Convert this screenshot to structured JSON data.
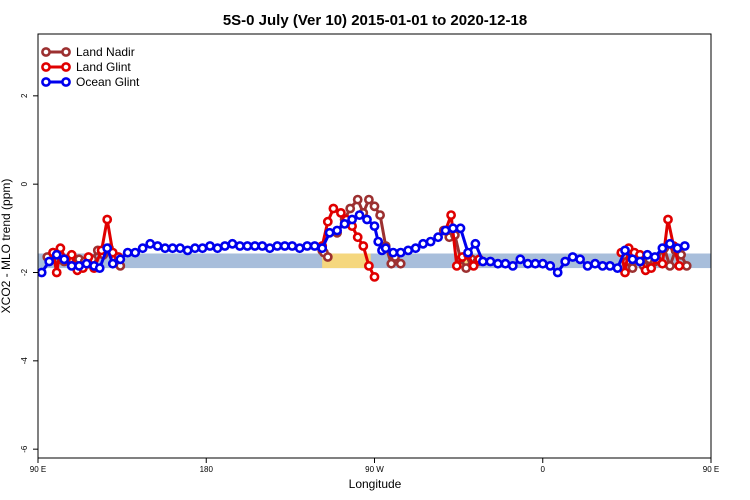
{
  "chart_data": {
    "type": "line",
    "title": "5S-0 July (Ver 10)   2015-01-01 to 2020-12-18",
    "xlabel": "Longitude",
    "ylabel": "XCO2 - MLO trend (ppm)",
    "xlim": [
      0,
      360
    ],
    "ylim": [
      -6.2,
      3.4
    ],
    "x_ticks": [
      {
        "value": 0,
        "label": "90 E"
      },
      {
        "value": 90,
        "label": "180"
      },
      {
        "value": 180,
        "label": "90 W"
      },
      {
        "value": 270,
        "label": "0"
      },
      {
        "value": 360,
        "label": "90 E"
      },
      {
        "value": 450,
        "label": "180"
      }
    ],
    "y_ticks": [
      {
        "value": 2,
        "label": "2"
      },
      {
        "value": 0,
        "label": "0"
      },
      {
        "value": -2,
        "label": "-2"
      },
      {
        "value": -4,
        "label": "-4"
      },
      {
        "value": -6,
        "label": "-6"
      }
    ],
    "band": {
      "ymin": -1.9,
      "ymax": -1.57,
      "color": "#a8bedb",
      "highlight_color": "#f5d77e",
      "highlights": [
        [
          152,
          178
        ],
        [
          223,
          231
        ]
      ]
    },
    "legend_position": "top-left",
    "series": [
      {
        "name": "Land Nadir",
        "color": "#9c3030",
        "segments": [
          [
            [
              5,
              -1.65
            ],
            [
              8,
              -1.55
            ],
            [
              11,
              -1.7
            ],
            [
              14,
              -1.75
            ],
            [
              17,
              -1.7
            ],
            [
              20,
              -1.85
            ],
            [
              22,
              -1.7
            ],
            [
              25,
              -1.75
            ],
            [
              27,
              -1.8
            ],
            [
              29,
              -1.7
            ],
            [
              32,
              -1.5
            ],
            [
              35,
              -1.6
            ],
            [
              38,
              -1.45
            ],
            [
              41,
              -1.7
            ],
            [
              44,
              -1.85
            ]
          ],
          [
            [
              152,
              -1.5
            ],
            [
              153,
              -1.55
            ],
            [
              155,
              -1.65
            ]
          ],
          [
            [
              160,
              -1.1
            ],
            [
              164,
              -0.8
            ],
            [
              167,
              -0.55
            ],
            [
              171,
              -0.35
            ],
            [
              174,
              -0.65
            ],
            [
              177,
              -0.35
            ],
            [
              180,
              -0.5
            ],
            [
              183,
              -0.7
            ],
            [
              186,
              -1.4
            ],
            [
              189,
              -1.8
            ],
            [
              191,
              -1.65
            ],
            [
              194,
              -1.8
            ]
          ],
          [
            [
              217,
              -1.05
            ],
            [
              220,
              -1.2
            ],
            [
              223,
              -1.15
            ],
            [
              226,
              -1.7
            ],
            [
              229,
              -1.9
            ],
            [
              232,
              -1.7
            ],
            [
              235,
              -1.75
            ]
          ],
          [
            [
              315,
              -1.75
            ],
            [
              318,
              -1.9
            ],
            [
              321,
              -1.65
            ],
            [
              324,
              -1.85
            ],
            [
              327,
              -1.7
            ],
            [
              330,
              -1.75
            ],
            [
              335,
              -1.45
            ],
            [
              338,
              -1.85
            ],
            [
              341,
              -1.5
            ],
            [
              344,
              -1.6
            ],
            [
              347,
              -1.85
            ]
          ]
        ]
      },
      {
        "name": "Land Glint",
        "color": "#e00000",
        "segments": [
          [
            [
              8,
              -1.55
            ],
            [
              10,
              -2.0
            ],
            [
              12,
              -1.45
            ],
            [
              15,
              -1.7
            ],
            [
              18,
              -1.6
            ],
            [
              21,
              -1.95
            ],
            [
              24,
              -1.9
            ],
            [
              27,
              -1.65
            ],
            [
              30,
              -1.9
            ],
            [
              34,
              -1.5
            ],
            [
              37,
              -0.8
            ],
            [
              40,
              -1.55
            ],
            [
              43,
              -1.65
            ]
          ],
          [
            [
              152,
              -1.4
            ],
            [
              155,
              -0.85
            ],
            [
              158,
              -0.55
            ],
            [
              162,
              -0.65
            ],
            [
              165,
              -0.8
            ],
            [
              168,
              -0.95
            ],
            [
              171,
              -1.2
            ],
            [
              174,
              -1.4
            ],
            [
              177,
              -1.85
            ],
            [
              180,
              -2.1
            ]
          ],
          [
            [
              218,
              -1.05
            ],
            [
              221,
              -0.7
            ],
            [
              224,
              -1.85
            ],
            [
              227,
              -1.65
            ],
            [
              230,
              -1.6
            ],
            [
              233,
              -1.85
            ],
            [
              236,
              -1.7
            ]
          ],
          [
            [
              312,
              -1.55
            ],
            [
              314,
              -2.0
            ],
            [
              316,
              -1.45
            ],
            [
              319,
              -1.55
            ],
            [
              322,
              -1.6
            ],
            [
              325,
              -1.95
            ],
            [
              328,
              -1.9
            ],
            [
              331,
              -1.7
            ],
            [
              334,
              -1.8
            ],
            [
              337,
              -0.8
            ],
            [
              340,
              -1.4
            ],
            [
              343,
              -1.85
            ]
          ]
        ]
      },
      {
        "name": "Ocean Glint",
        "color": "#0000ee",
        "segments": [
          [
            [
              2,
              -2.0
            ],
            [
              6,
              -1.75
            ],
            [
              10,
              -1.6
            ],
            [
              14,
              -1.7
            ],
            [
              18,
              -1.85
            ],
            [
              22,
              -1.85
            ],
            [
              26,
              -1.8
            ],
            [
              30,
              -1.85
            ],
            [
              33,
              -1.9
            ],
            [
              37,
              -1.45
            ],
            [
              40,
              -1.8
            ],
            [
              44,
              -1.7
            ],
            [
              48,
              -1.55
            ],
            [
              52,
              -1.55
            ],
            [
              56,
              -1.45
            ],
            [
              60,
              -1.35
            ],
            [
              64,
              -1.4
            ],
            [
              68,
              -1.45
            ],
            [
              72,
              -1.45
            ],
            [
              76,
              -1.45
            ],
            [
              80,
              -1.5
            ],
            [
              84,
              -1.45
            ],
            [
              88,
              -1.45
            ],
            [
              92,
              -1.4
            ],
            [
              96,
              -1.45
            ],
            [
              100,
              -1.4
            ],
            [
              104,
              -1.35
            ],
            [
              108,
              -1.4
            ],
            [
              112,
              -1.4
            ],
            [
              116,
              -1.4
            ],
            [
              120,
              -1.4
            ],
            [
              124,
              -1.45
            ],
            [
              128,
              -1.4
            ],
            [
              132,
              -1.4
            ],
            [
              136,
              -1.4
            ],
            [
              140,
              -1.45
            ],
            [
              144,
              -1.4
            ],
            [
              148,
              -1.4
            ],
            [
              152,
              -1.45
            ],
            [
              156,
              -1.1
            ],
            [
              160,
              -1.05
            ],
            [
              164,
              -0.9
            ],
            [
              168,
              -0.8
            ],
            [
              172,
              -0.7
            ],
            [
              176,
              -0.8
            ],
            [
              180,
              -0.95
            ],
            [
              182,
              -1.3
            ],
            [
              184,
              -1.5
            ],
            [
              186,
              -1.45
            ],
            [
              190,
              -1.55
            ],
            [
              194,
              -1.55
            ],
            [
              198,
              -1.5
            ],
            [
              202,
              -1.45
            ],
            [
              206,
              -1.35
            ],
            [
              210,
              -1.3
            ],
            [
              214,
              -1.2
            ],
            [
              218,
              -1.05
            ],
            [
              222,
              -1.0
            ],
            [
              226,
              -1.0
            ],
            [
              230,
              -1.55
            ],
            [
              234,
              -1.35
            ],
            [
              238,
              -1.75
            ],
            [
              242,
              -1.75
            ],
            [
              246,
              -1.8
            ],
            [
              250,
              -1.8
            ],
            [
              254,
              -1.85
            ],
            [
              258,
              -1.7
            ],
            [
              262,
              -1.8
            ],
            [
              266,
              -1.8
            ],
            [
              270,
              -1.8
            ],
            [
              274,
              -1.85
            ],
            [
              278,
              -2.0
            ],
            [
              282,
              -1.75
            ],
            [
              286,
              -1.65
            ],
            [
              290,
              -1.7
            ],
            [
              294,
              -1.85
            ],
            [
              298,
              -1.8
            ],
            [
              302,
              -1.85
            ],
            [
              306,
              -1.85
            ],
            [
              310,
              -1.9
            ],
            [
              314,
              -1.5
            ],
            [
              318,
              -1.7
            ],
            [
              322,
              -1.75
            ],
            [
              326,
              -1.6
            ],
            [
              330,
              -1.65
            ],
            [
              334,
              -1.45
            ],
            [
              338,
              -1.35
            ],
            [
              342,
              -1.45
            ],
            [
              346,
              -1.4
            ]
          ]
        ]
      }
    ]
  }
}
